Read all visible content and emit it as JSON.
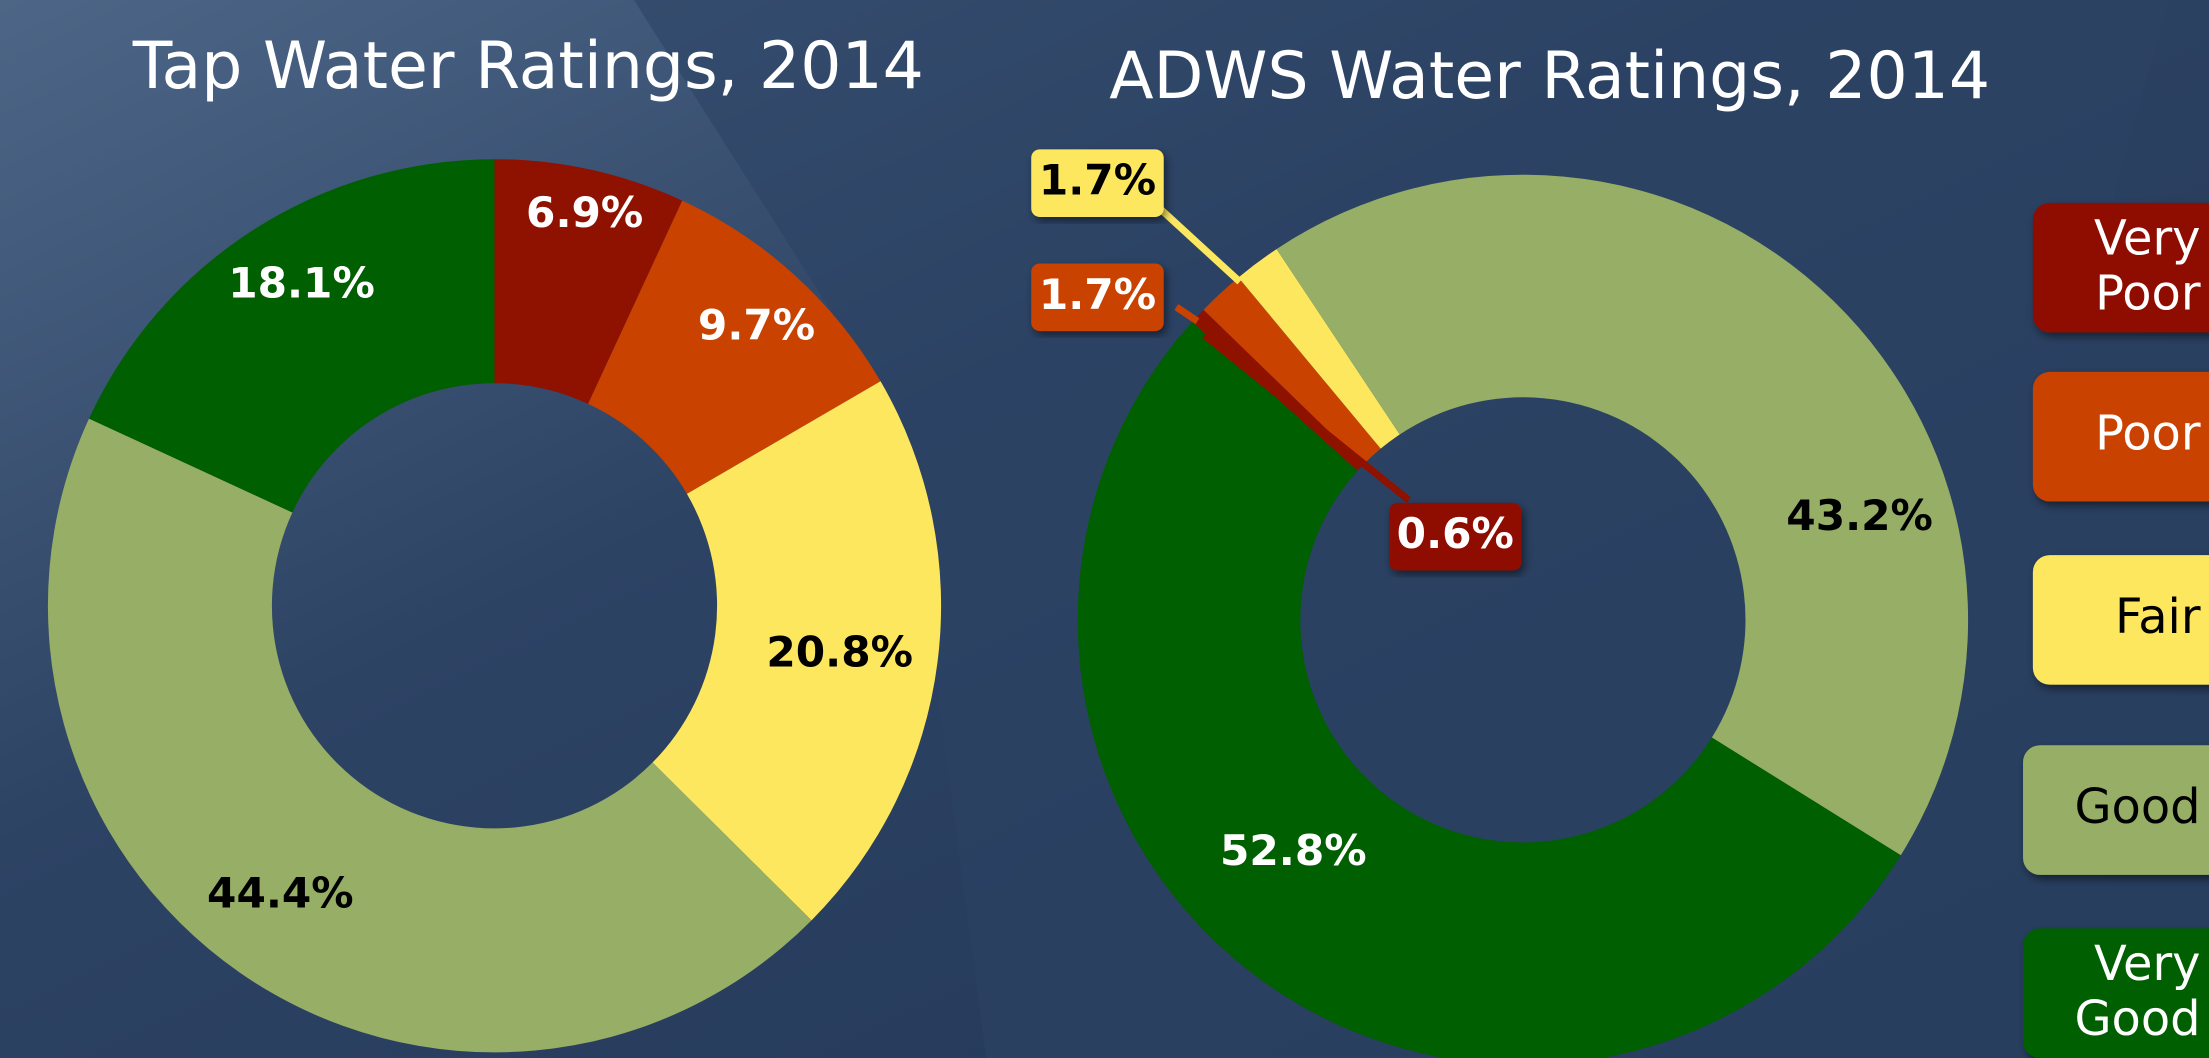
{
  "chart_data": [
    {
      "type": "donut",
      "title": "Tap Water Ratings, 2014",
      "values": [
        6.9,
        9.7,
        20.8,
        44.4,
        18.1
      ],
      "value_labels": [
        "6.9%",
        "9.7%",
        "20.8%",
        "44.4%",
        "18.1%"
      ],
      "colors": [
        "#8f1100",
        "#c94200",
        "#fde75f",
        "#97ae66",
        "#005f00"
      ]
    },
    {
      "type": "donut",
      "title": "ADWS Water Ratings, 2014",
      "values": [
        0.6,
        1.7,
        1.7,
        43.2,
        52.8
      ],
      "value_labels": [
        "0.6%",
        "1.7%",
        "1.7%",
        "43.2%",
        "52.8%"
      ],
      "colors": [
        "#8f1100",
        "#c94200",
        "#fde75f",
        "#97ae66",
        "#005f00"
      ]
    }
  ],
  "legend": {
    "labels": [
      "Very Poor",
      "Poor",
      "Fair",
      "Good",
      "Very Good"
    ],
    "colors": [
      "#8f1100",
      "#c94200",
      "#fde75f",
      "#97ae66",
      "#005f00"
    ]
  }
}
